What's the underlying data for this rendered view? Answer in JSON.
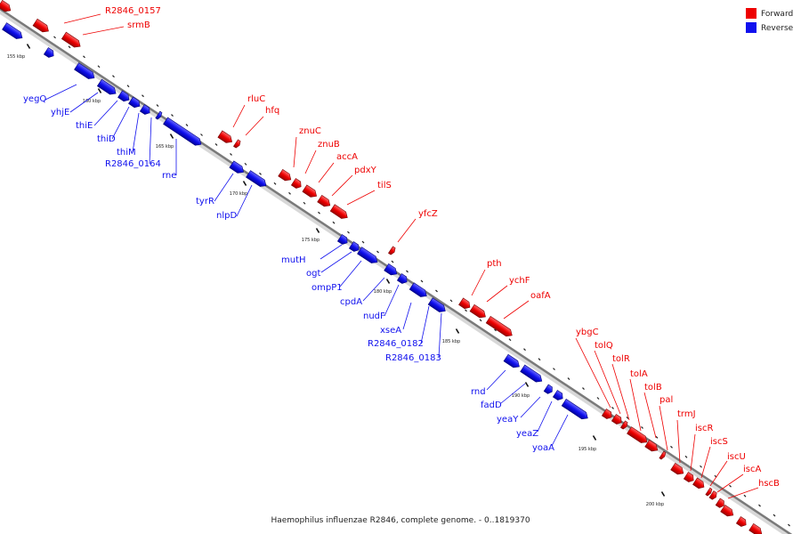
{
  "legend": {
    "forward": {
      "label": "Forward",
      "color": "#ee0000"
    },
    "reverse": {
      "label": "Reverse",
      "color": "#1010ee"
    }
  },
  "caption": "Haemophilus influenzae R2846, complete genome. - 0..1819370",
  "ticks": [
    "155 kbp",
    "160 kbp",
    "165 kbp",
    "170 kbp",
    "175 kbp",
    "180 kbp",
    "185 kbp",
    "190 kbp",
    "195 kbp",
    "200 kbp"
  ],
  "forward_genes": [
    "R2846_0157",
    "srmB",
    "rluC",
    "hfq",
    "znuC",
    "znuB",
    "accA",
    "pdxY",
    "tilS",
    "yfcZ",
    "pth",
    "ychF",
    "oafA",
    "ybgC",
    "tolQ",
    "tolR",
    "tolA",
    "tolB",
    "pal",
    "trmJ",
    "iscR",
    "iscS",
    "iscU",
    "iscA",
    "hscB"
  ],
  "reverse_genes": [
    "yegQ",
    "yhjE",
    "thiE",
    "thiD",
    "thiM",
    "R2846_0164",
    "rne",
    "tyrR",
    "nlpD",
    "mutH",
    "ogt",
    "ompP1",
    "cpdA",
    "nudF",
    "xseA",
    "R2846_0182",
    "R2846_0183",
    "rnd",
    "fadD",
    "yeaY",
    "yeaZ",
    "yoaA"
  ]
}
